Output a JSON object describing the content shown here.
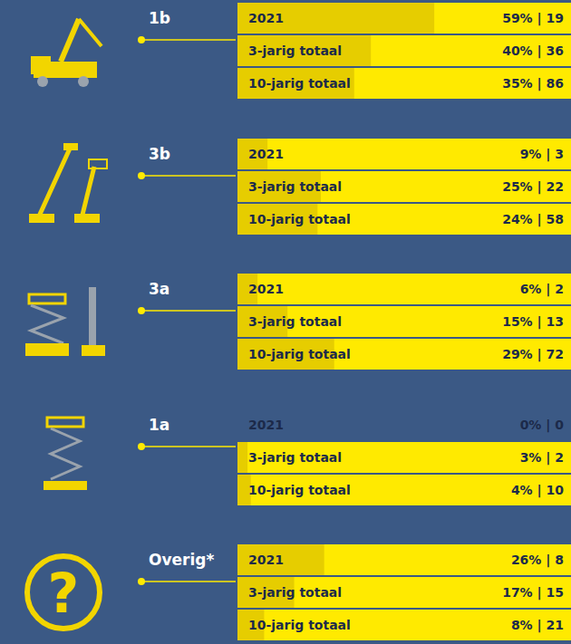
{
  "chart_data": [
    {
      "type": "bar",
      "orientation": "horizontal",
      "title": "1b",
      "categories": [
        "2021",
        "3-jarig totaal",
        "10-jarig totaal"
      ],
      "values": [
        59,
        40,
        35
      ],
      "value_labels": [
        "59% | 19",
        "40% | 36",
        "35% | 86"
      ],
      "xlim": [
        0,
        100
      ],
      "tick_labels": false,
      "data_labels": true,
      "color": "#e6cd00"
    },
    {
      "type": "bar",
      "orientation": "horizontal",
      "title": "3b",
      "categories": [
        "2021",
        "3-jarig totaal",
        "10-jarig totaal"
      ],
      "values": [
        9,
        25,
        24
      ],
      "value_labels": [
        "9% | 3",
        "25% | 22",
        "24% | 58"
      ],
      "xlim": [
        0,
        100
      ],
      "tick_labels": false,
      "data_labels": true,
      "color": "#e6cd00"
    },
    {
      "type": "bar",
      "orientation": "horizontal",
      "title": "3a",
      "categories": [
        "2021",
        "3-jarig totaal",
        "10-jarig totaal"
      ],
      "values": [
        6,
        15,
        29
      ],
      "value_labels": [
        "6% | 2",
        "15% | 13",
        "29% | 72"
      ],
      "xlim": [
        0,
        100
      ],
      "tick_labels": false,
      "data_labels": true,
      "color": "#e6cd00"
    },
    {
      "type": "bar",
      "orientation": "horizontal",
      "title": "1a",
      "categories": [
        "2021",
        "3-jarig totaal",
        "10-jarig totaal"
      ],
      "values": [
        0,
        3,
        4
      ],
      "value_labels": [
        "0% | 0",
        "3% | 2",
        "4% | 10"
      ],
      "xlim": [
        0,
        100
      ],
      "tick_labels": false,
      "data_labels": true,
      "color": "#e6cd00"
    },
    {
      "type": "bar",
      "orientation": "horizontal",
      "title": "Overig*",
      "categories": [
        "2021",
        "3-jarig totaal",
        "10-jarig totaal"
      ],
      "values": [
        26,
        17,
        8
      ],
      "value_labels": [
        "26% | 8",
        "17% | 15",
        "8% | 21"
      ],
      "xlim": [
        0,
        100
      ],
      "tick_labels": false,
      "data_labels": true,
      "color": "#e6cd00",
      "annotations": [
        "?"
      ]
    }
  ]
}
